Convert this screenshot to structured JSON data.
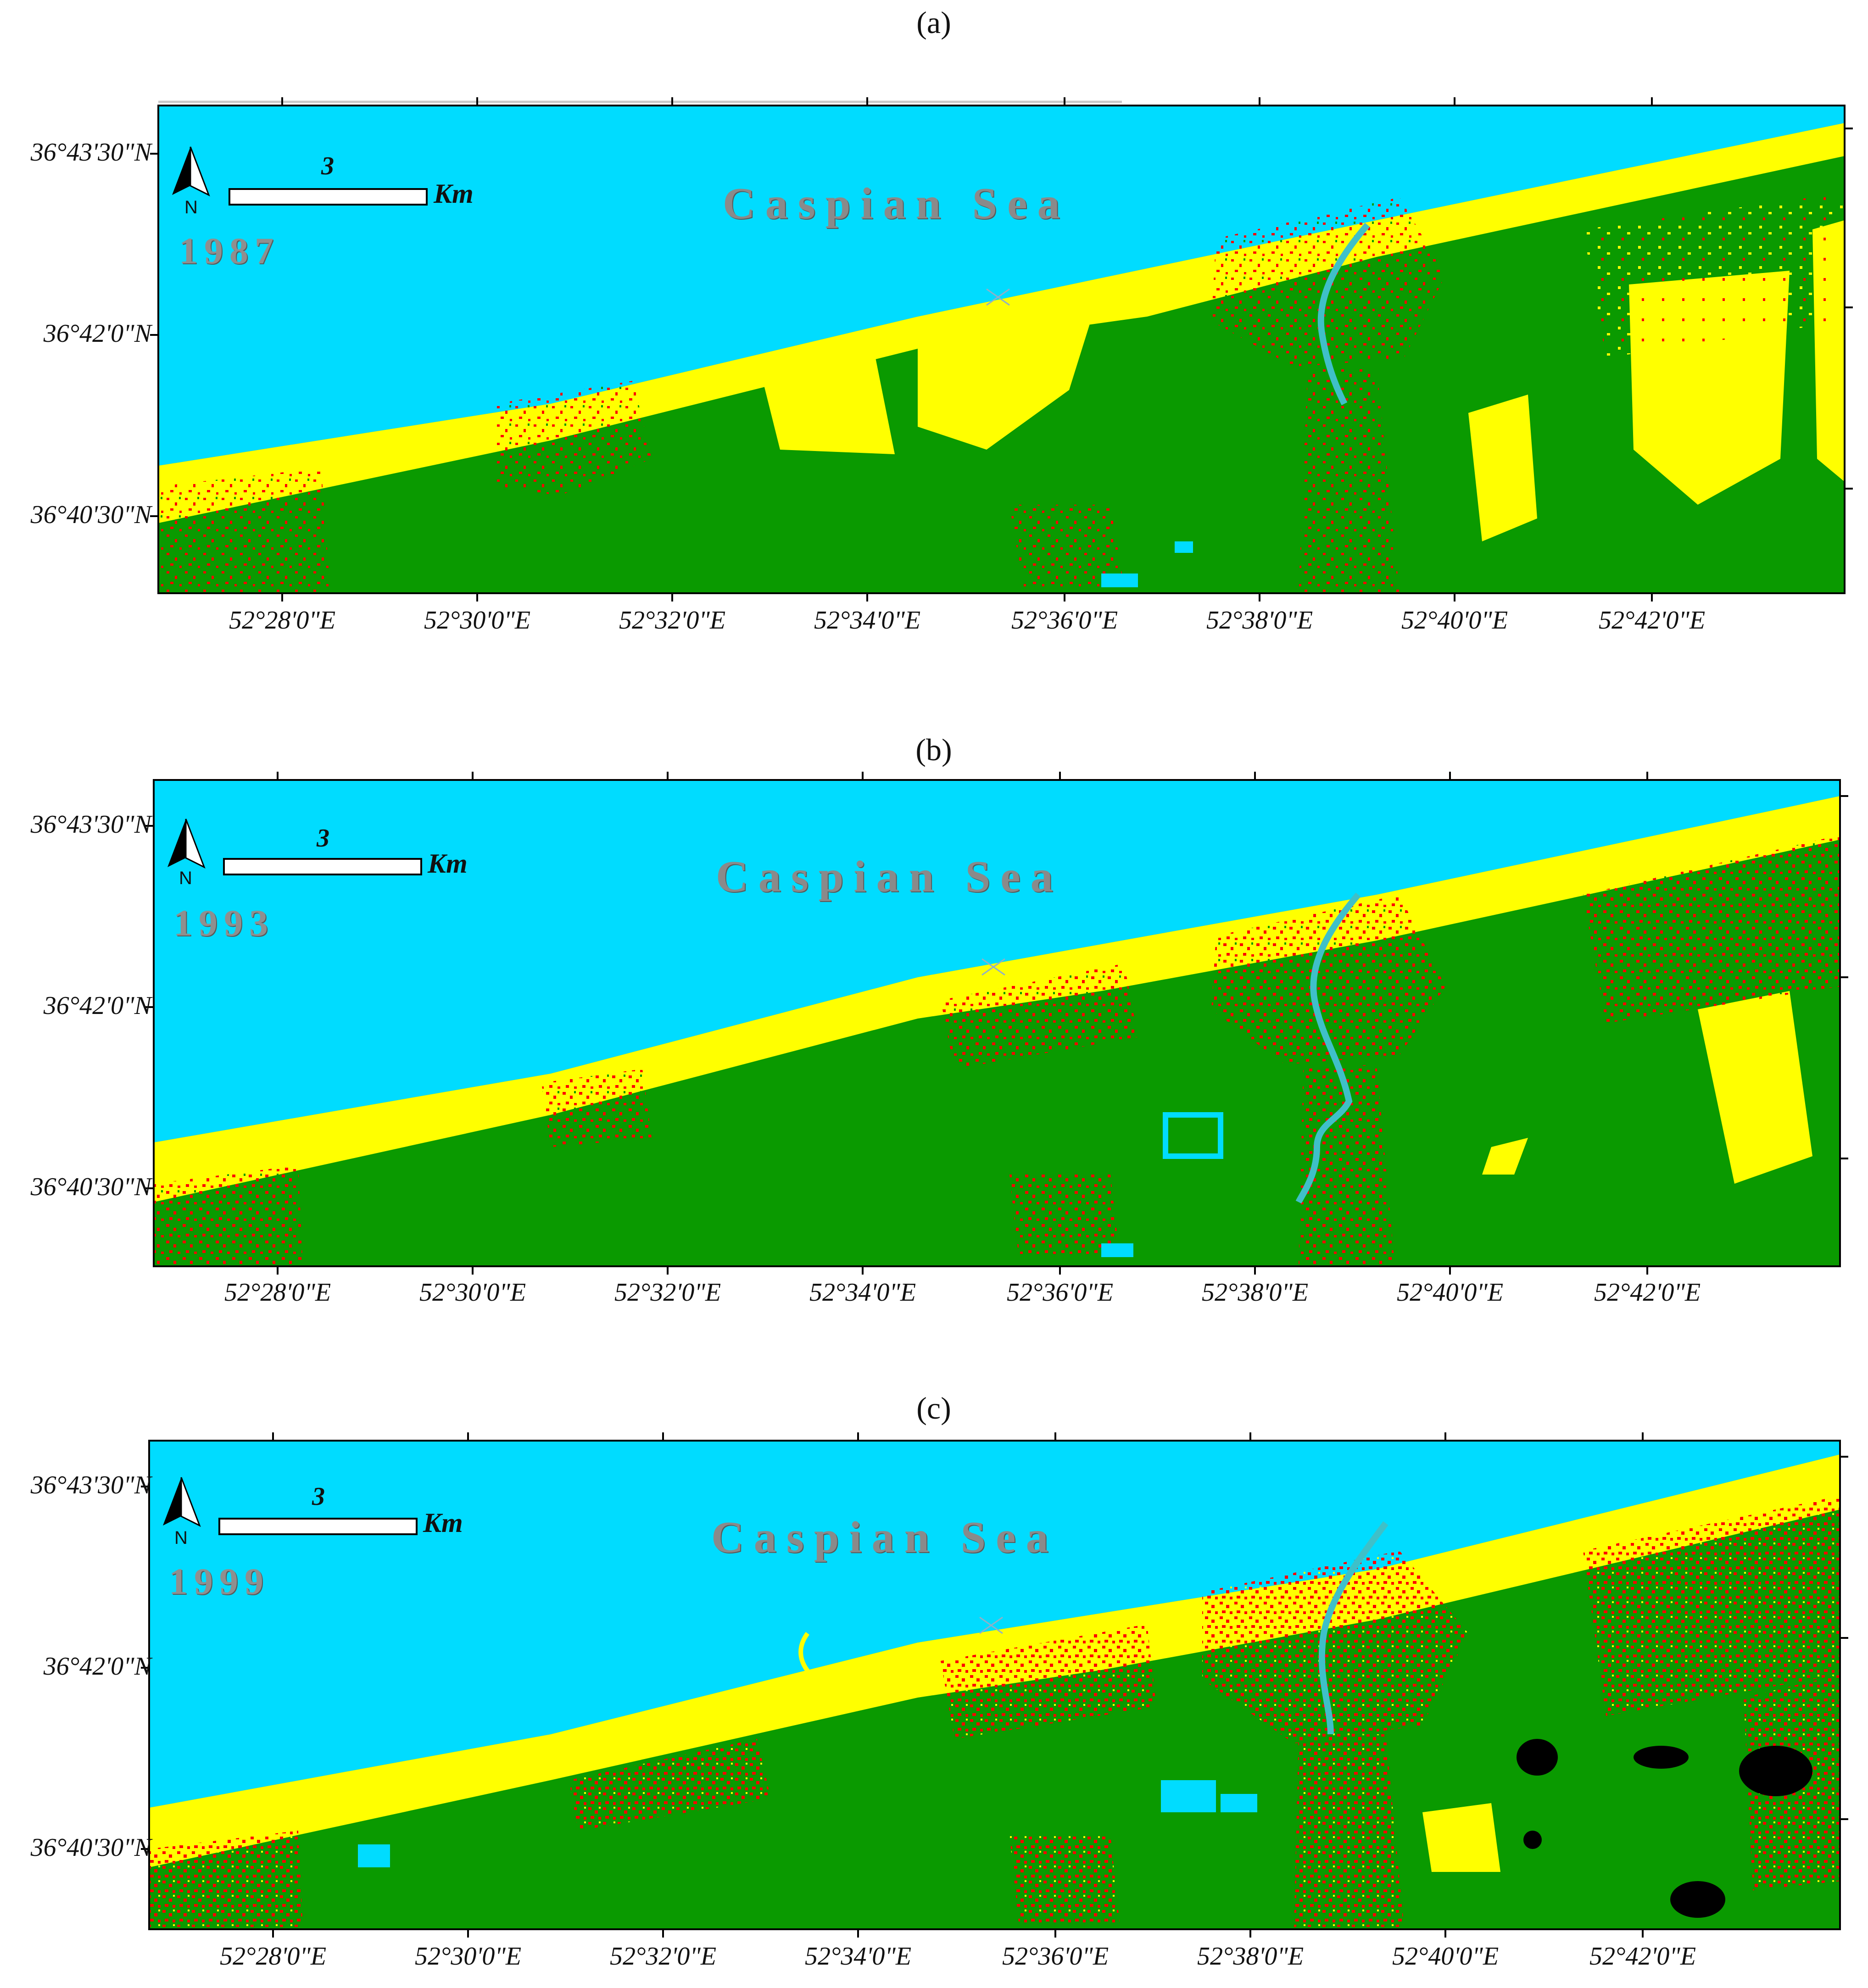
{
  "figure": {
    "panels": [
      {
        "label": "(a)",
        "year": "1987",
        "sea_label": "Caspian Sea",
        "scale_value": "3",
        "scale_unit": "Km",
        "north": "N"
      },
      {
        "label": "(b)",
        "year": "1993",
        "sea_label": "Caspian Sea",
        "scale_value": "3",
        "scale_unit": "Km",
        "north": "N"
      },
      {
        "label": "(c)",
        "year": "1999",
        "sea_label": "Caspian Sea",
        "scale_value": "3",
        "scale_unit": "Km",
        "north": "N"
      }
    ],
    "lat_ticks": [
      "36°43'30\"N",
      "36°42'0\"N",
      "36°40'30\"N"
    ],
    "lon_ticks": [
      "52°28'0\"E",
      "52°30'0\"E",
      "52°32'0\"E",
      "52°34'0\"E",
      "52°36'0\"E",
      "52°38'0\"E",
      "52°40'0\"E",
      "52°42'0\"E"
    ],
    "colors": {
      "water": "#00dcff",
      "bare_land": "#ffff00",
      "vegetation": "#0a9a00",
      "built_up": "#ff0000",
      "other": "#000000"
    }
  }
}
